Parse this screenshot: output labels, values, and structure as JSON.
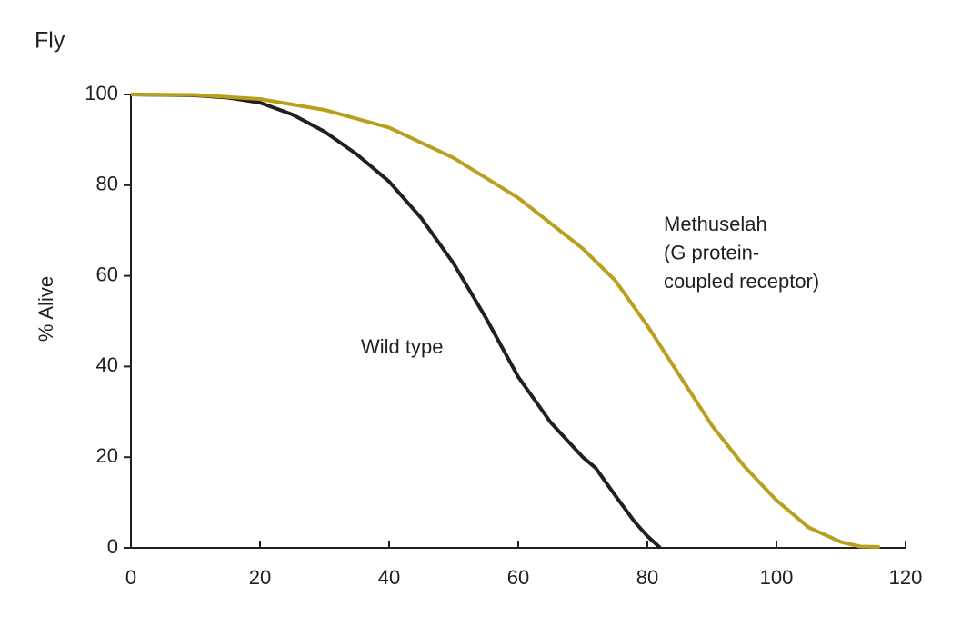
{
  "chart_data": {
    "type": "line",
    "title": "Fly",
    "y_label": "% Alive",
    "xlim": [
      0,
      120
    ],
    "xticks": [
      0,
      20,
      40,
      60,
      80,
      100,
      120
    ],
    "ylim": [
      0,
      100
    ],
    "yticks": [
      0,
      20,
      40,
      60,
      80,
      100
    ],
    "grid": false,
    "series": [
      {
        "name": "Wild type",
        "color": "#231f20",
        "x": [
          0,
          10,
          15,
          20,
          25,
          30,
          35,
          40,
          45,
          50,
          55,
          60,
          65,
          70,
          72,
          75,
          78,
          80,
          82
        ],
        "values": [
          100,
          99.8,
          99.3,
          98.2,
          95.6,
          91.8,
          86.8,
          80.8,
          72.7,
          62.7,
          50.7,
          37.7,
          27.7,
          20,
          17.6,
          11.6,
          5.8,
          2.6,
          0
        ]
      },
      {
        "name": "Methuselah\n(G protein-\ncoupled receptor)",
        "color": "#b8a01e",
        "x": [
          0,
          10,
          20,
          30,
          40,
          50,
          60,
          70,
          75,
          80,
          85,
          90,
          95,
          100,
          105,
          110,
          113,
          116
        ],
        "values": [
          100,
          99.9,
          99,
          96.6,
          92.7,
          86,
          77.2,
          66,
          59,
          49,
          38,
          27,
          18,
          10.5,
          4.5,
          1.3,
          0.3,
          0.2
        ]
      }
    ]
  }
}
